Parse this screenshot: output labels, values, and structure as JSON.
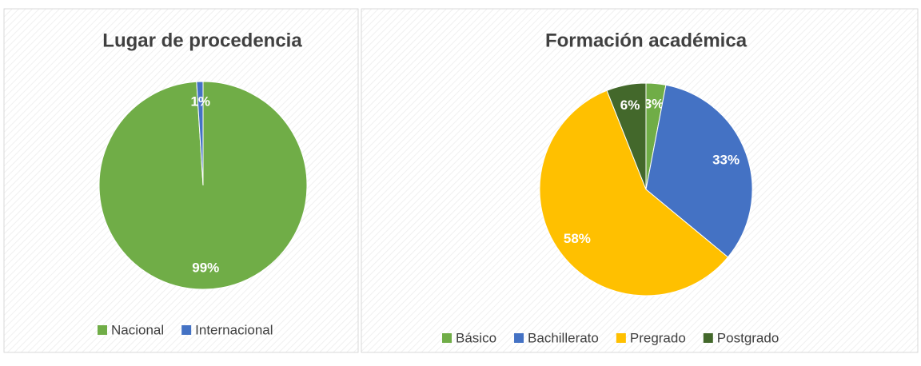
{
  "chart_data": [
    {
      "type": "pie",
      "title": "Lugar de procedencia",
      "categories": [
        "Nacional",
        "Internacional"
      ],
      "values": [
        99,
        1
      ],
      "value_labels": [
        "99%",
        "1%"
      ],
      "colors": [
        "#70ad47",
        "#4472c4"
      ]
    },
    {
      "type": "pie",
      "title": "Formación académica",
      "categories": [
        "Básico",
        "Bachillerato",
        "Pregrado",
        "Postgrado"
      ],
      "values": [
        3,
        33,
        58,
        6
      ],
      "value_labels": [
        "3%",
        "33%",
        "58%",
        "6%"
      ],
      "colors": [
        "#70ad47",
        "#4472c4",
        "#ffc000",
        "#43682b"
      ]
    }
  ]
}
